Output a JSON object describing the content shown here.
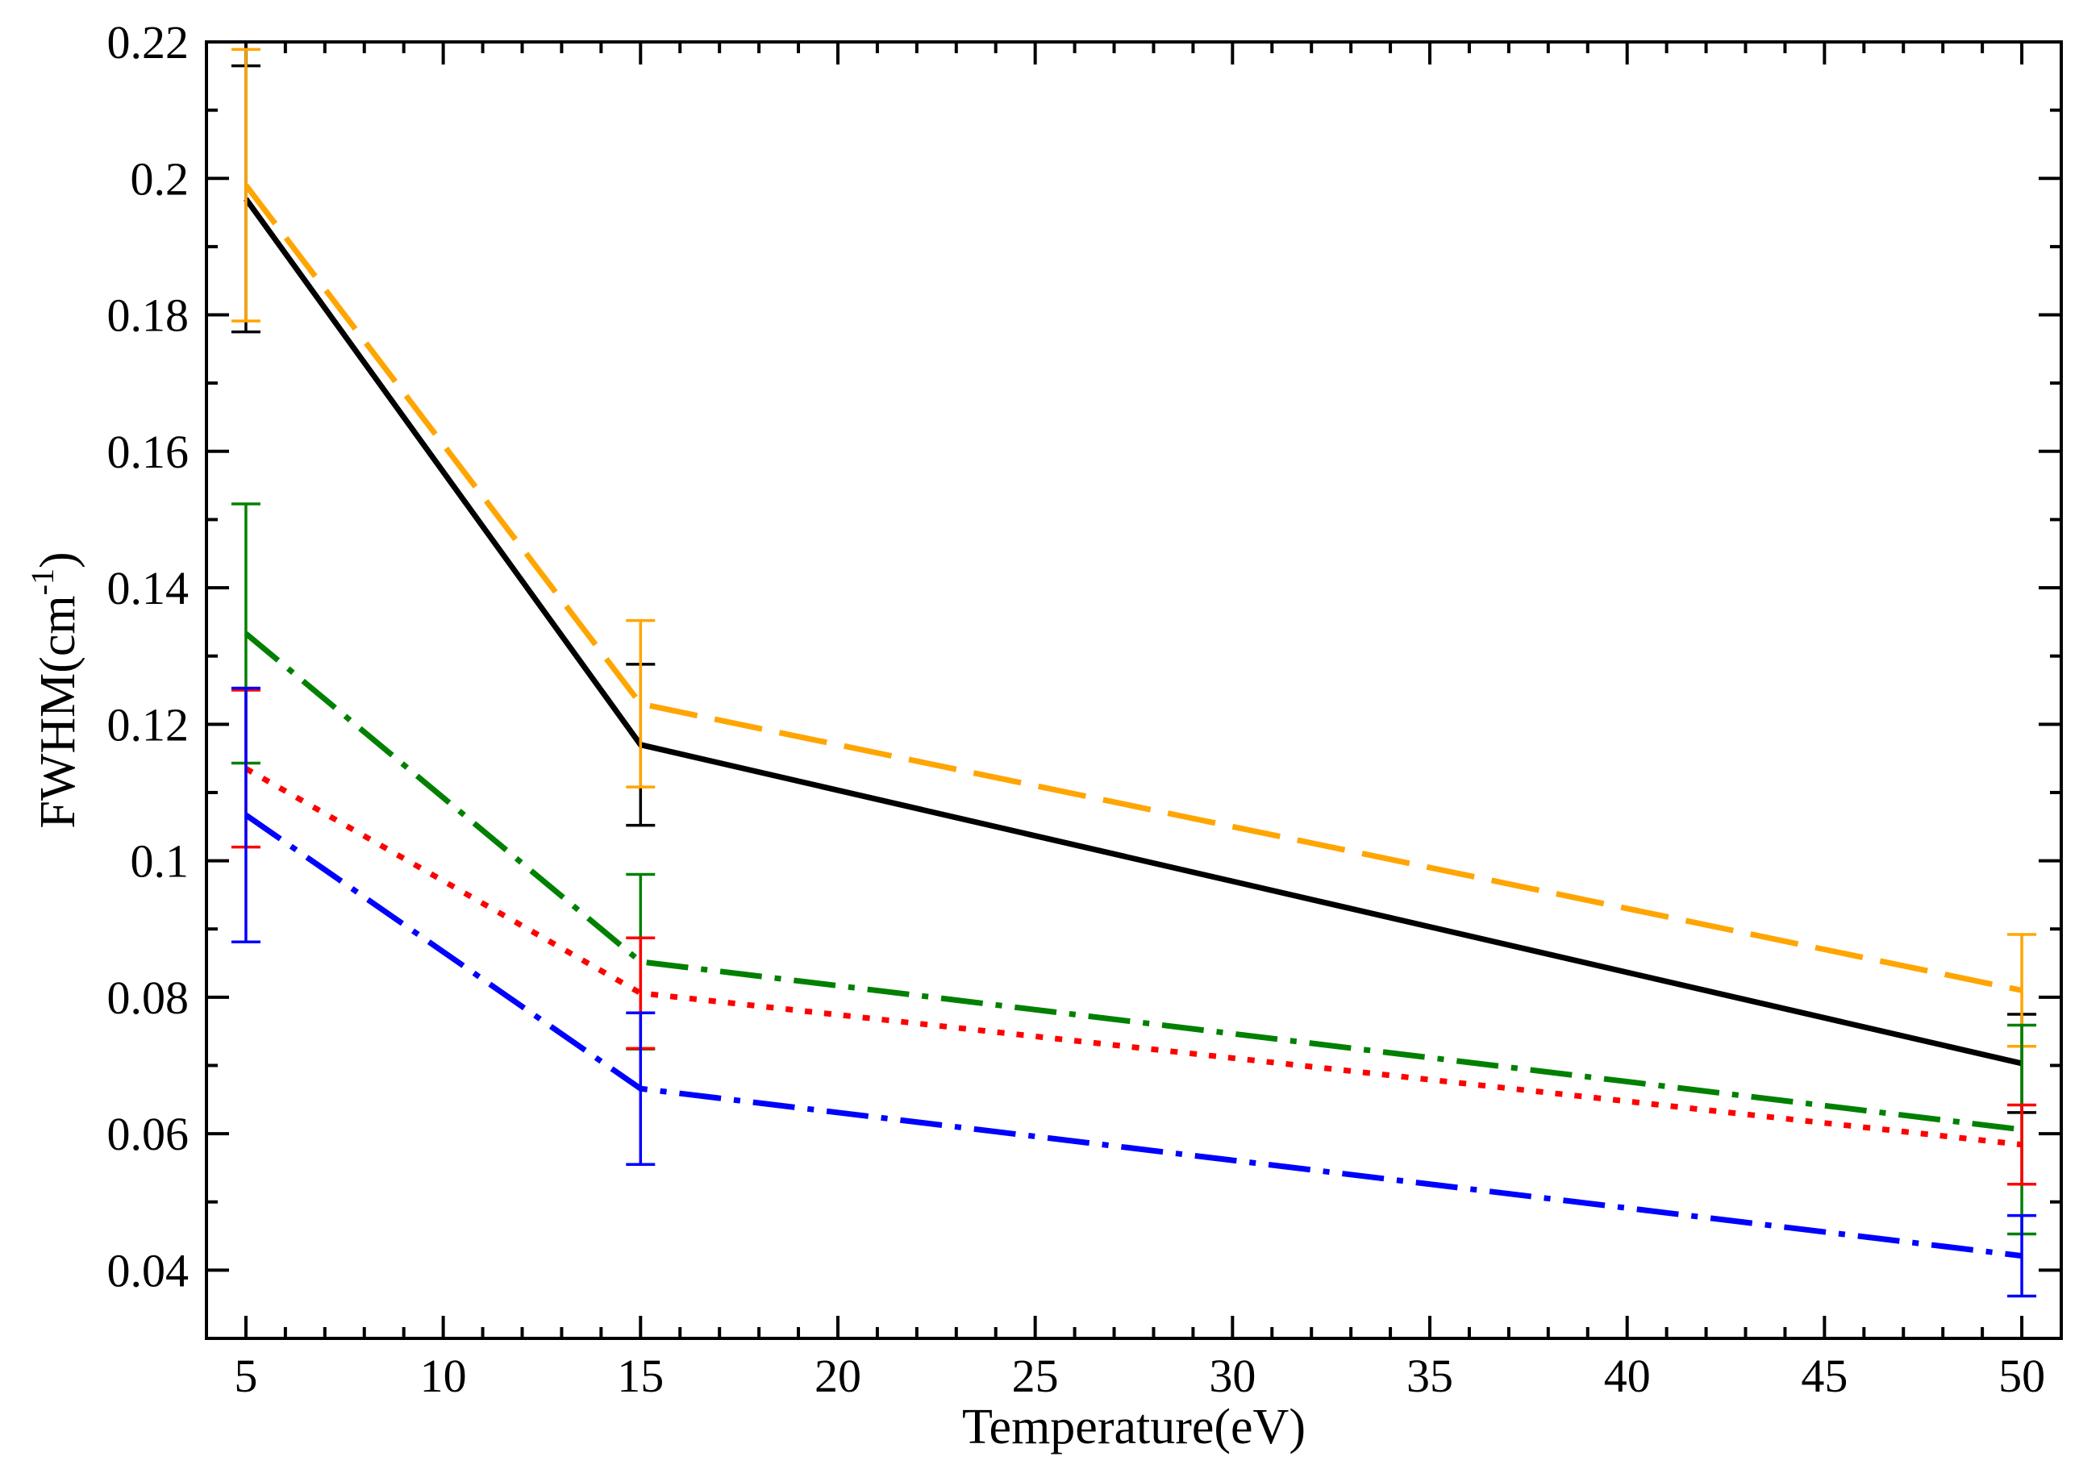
{
  "chart_data": {
    "type": "line",
    "xlabel": "Temperature(eV)",
    "ylabel_main": "FWHM(cm",
    "ylabel_sup": "-1",
    "ylabel_close": ")",
    "xlim": [
      4,
      51
    ],
    "ylim": [
      0.03,
      0.22
    ],
    "xticks": [
      5,
      10,
      15,
      20,
      25,
      30,
      35,
      40,
      45,
      50
    ],
    "yticks": [
      0.04,
      0.06,
      0.08,
      0.1,
      0.12,
      0.14,
      0.16,
      0.18,
      0.2,
      0.22
    ],
    "x_minor_step": 1,
    "y_minor_step": 0.01,
    "x": [
      5,
      15,
      50
    ],
    "series": [
      {
        "color": "#000000",
        "dash": "solid",
        "values": [
          0.197,
          0.117,
          0.0703
        ],
        "err": [
          0.0195,
          0.0118,
          0.0072
        ]
      },
      {
        "color": "#ffa500",
        "dash": "long-dash",
        "values": [
          0.199,
          0.123,
          0.081
        ],
        "err": [
          0.0199,
          0.0122,
          0.0082
        ]
      },
      {
        "color": "#008000",
        "dash": "dash-dot",
        "values": [
          0.1333,
          0.0852,
          0.0606
        ],
        "err": [
          0.019,
          0.0128,
          0.0153
        ]
      },
      {
        "color": "#ff0000",
        "dash": "dotted",
        "values": [
          0.1135,
          0.0806,
          0.0584
        ],
        "err": [
          0.0115,
          0.0081,
          0.0058
        ]
      },
      {
        "color": "#0000ff",
        "dash": "dash-dot",
        "values": [
          0.1067,
          0.0666,
          0.0421
        ],
        "err": [
          0.0186,
          0.0111,
          0.0059
        ]
      }
    ]
  }
}
